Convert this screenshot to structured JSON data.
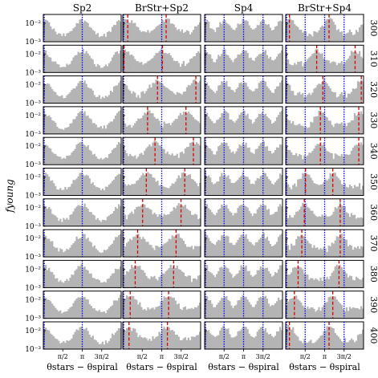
{
  "chart_data": {
    "type": "bar",
    "layout": "small multiples grid, 11 rows x 4 columns",
    "xlabel": "θstars − θspiral",
    "ylabel": "fyoung",
    "x_ticks": [
      "π/2",
      "π",
      "3π/2"
    ],
    "x_tick_values": [
      1.5708,
      3.1416,
      4.7124
    ],
    "xlim": [
      0,
      6.2832
    ],
    "y_ticks": [
      "10⁻²",
      "10⁻³"
    ],
    "y_scale": "log",
    "ylim": [
      0.001,
      0.03
    ],
    "bar_color": "#b4b4b4",
    "blue_line_color": "#0000ff",
    "red_line_color": "#dd0000",
    "columns": [
      {
        "label": "Sp2",
        "blue_lines": [
          0.0,
          3.1416
        ],
        "red_shift": null
      },
      {
        "label": "BrStr+Sp2",
        "blue_lines": [
          0.0,
          3.1416
        ],
        "red_shift": 0.0
      },
      {
        "label": "Sp4",
        "blue_lines": [
          0.0,
          1.5708,
          3.1416,
          4.7124
        ],
        "red_shift": null
      },
      {
        "label": "BrStr+Sp4",
        "blue_lines": [
          0.0,
          1.5708,
          3.1416,
          4.7124
        ],
        "red_shift": 0.0
      }
    ],
    "rows": [
      {
        "label": "300",
        "red_sp2": [
          0.4,
          3.5
        ],
        "red_sp4": [
          0.3,
          3.5
        ]
      },
      {
        "label": "310",
        "red_sp2": [
          0.1,
          3.2
        ],
        "red_sp4": [
          2.5,
          5.6
        ]
      },
      {
        "label": "320",
        "red_sp2": [
          2.8,
          5.9
        ],
        "red_sp4": [
          3.0,
          6.1
        ]
      },
      {
        "label": "330",
        "red_sp2": [
          2.0,
          5.1
        ],
        "red_sp4": [
          2.8,
          5.9
        ]
      },
      {
        "label": "340",
        "red_sp2": [
          2.6,
          5.7
        ],
        "red_sp4": [
          2.8,
          5.9
        ]
      },
      {
        "label": "350",
        "red_sp2": [
          1.9,
          5.0
        ],
        "red_sp4": [
          1.6,
          3.8
        ]
      },
      {
        "label": "360",
        "red_sp2": [
          1.6,
          4.7
        ],
        "red_sp4": [
          1.5,
          4.4
        ]
      },
      {
        "label": "370",
        "red_sp2": [
          1.2,
          4.3
        ],
        "red_sp4": [
          1.3,
          4.4
        ]
      },
      {
        "label": "380",
        "red_sp2": [
          1.0,
          4.1
        ],
        "red_sp4": [
          1.0,
          4.3
        ]
      },
      {
        "label": "390",
        "red_sp2": [
          0.6,
          3.7
        ],
        "red_sp4": [
          0.7,
          3.8
        ]
      },
      {
        "label": "400",
        "red_sp2": [
          0.5,
          3.6
        ],
        "red_sp4": [
          0.3,
          3.5
        ]
      }
    ]
  }
}
